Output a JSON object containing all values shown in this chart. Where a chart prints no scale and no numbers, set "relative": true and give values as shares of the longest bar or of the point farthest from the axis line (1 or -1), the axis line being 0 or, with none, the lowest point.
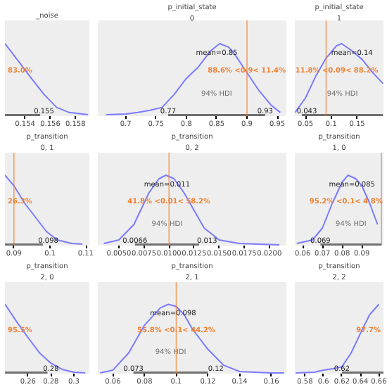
{
  "chart_data": [
    {
      "type": "line",
      "title": "_noise",
      "relative": true,
      "xlim": [
        0.1524,
        0.1591
      ],
      "xticks": [
        0.154,
        0.156,
        0.158
      ],
      "series": [
        {
          "color": "#7b7bff",
          "x": [
            0.1524,
            0.1535,
            0.1545,
            0.1555,
            0.1565,
            0.1575,
            0.159
          ],
          "values": [
            1.0,
            0.75,
            0.52,
            0.3,
            0.12,
            0.05,
            0.02
          ]
        },
        {
          "color": "#707070",
          "x": [
            0.1524,
            0.1552
          ],
          "values": [
            0,
            0
          ]
        }
      ],
      "annotations": [
        "83.0%",
        {
          "text": "0.155",
          "x": 0.1555,
          "y": 0.08
        }
      ]
    },
    {
      "type": "line",
      "title": "p_initial_state",
      "subtitle": "0",
      "relative": true,
      "xlim": [
        0.654,
        0.965
      ],
      "xticks": [
        0.7,
        0.75,
        0.8,
        0.85,
        0.9,
        0.95
      ],
      "series": [
        {
          "color": "#7b7bff",
          "x": [
            0.668,
            0.7,
            0.72,
            0.74,
            0.76,
            0.78,
            0.8,
            0.82,
            0.84,
            0.855,
            0.87,
            0.88,
            0.9,
            0.92,
            0.94,
            0.955
          ],
          "values": [
            0.02,
            0.03,
            0.05,
            0.08,
            0.12,
            0.3,
            0.52,
            0.68,
            0.9,
            1.0,
            0.95,
            0.85,
            0.6,
            0.35,
            0.15,
            0.05
          ]
        },
        {
          "name": "94% HDI",
          "color": "#707070",
          "x": [
            0.77,
            0.93
          ],
          "values": [
            0,
            0
          ]
        }
      ],
      "ref_lines": [
        {
          "axis": "x",
          "value": 0.9,
          "label": "88.6% <0.9< 11.4%",
          "color": "#f08030"
        }
      ],
      "annotations": [
        {
          "text": "mean=0.85",
          "x": 0.85,
          "y": 0.86
        },
        {
          "text": "0.77",
          "x": 0.77,
          "y": 0.08
        },
        {
          "text": "0.93",
          "x": 0.93,
          "y": 0.08
        }
      ]
    },
    {
      "type": "line",
      "title": "p_initial_state",
      "subtitle": "1",
      "relative": true,
      "xlim": [
        0.0295,
        0.201
      ],
      "xticks": [
        0.05,
        0.1,
        0.15
      ],
      "series": [
        {
          "color": "#7b7bff",
          "x": [
            0.03,
            0.05,
            0.07,
            0.09,
            0.11,
            0.12,
            0.14,
            0.16,
            0.18,
            0.2
          ],
          "values": [
            0.05,
            0.25,
            0.55,
            0.8,
            0.97,
            1.0,
            0.9,
            0.78,
            0.6,
            0.45
          ]
        },
        {
          "name": "94% HDI",
          "color": "#707070",
          "x": [
            0.043,
            0.2
          ],
          "values": [
            0,
            0
          ]
        }
      ],
      "ref_lines": [
        {
          "axis": "x",
          "value": 0.09,
          "label": "11.8% <0.09< 88.2%",
          "color": "#f08030"
        }
      ],
      "annotations": [
        {
          "text": "mean=0.14",
          "x": 0.14,
          "y": 0.86
        },
        {
          "text": "0.043",
          "x": 0.043,
          "y": 0.08
        }
      ]
    },
    {
      "type": "line",
      "title": "p_transition",
      "subtitle": "0, 1",
      "relative": true,
      "xlim": [
        0.0875,
        0.1109
      ],
      "xticks": [
        0.09,
        0.1,
        0.11
      ],
      "series": [
        {
          "color": "#7b7bff",
          "x": [
            0.0875,
            0.09,
            0.093,
            0.096,
            0.099,
            0.102,
            0.106,
            0.109
          ],
          "values": [
            1.0,
            0.85,
            0.6,
            0.4,
            0.2,
            0.08,
            0.03,
            0.02
          ]
        },
        {
          "color": "#707070",
          "x": [
            0.0875,
            0.098
          ],
          "values": [
            0,
            0
          ]
        }
      ],
      "ref_lines": [
        {
          "axis": "x",
          "value": 0.09,
          "color": "#f08030"
        }
      ],
      "annotations": [
        "26.3%",
        {
          "text": "0.098",
          "x": 0.0995,
          "y": 0.08
        }
      ]
    },
    {
      "type": "line",
      "title": "p_transition",
      "subtitle": "0, 2",
      "relative": true,
      "xlim": [
        0.0029,
        0.0217
      ],
      "xticks": [
        {
          "value": 0.005,
          "label": "0.0050"
        },
        {
          "value": 0.0075,
          "label": "0.0075"
        },
        {
          "value": 0.01,
          "label": "0.0100"
        },
        {
          "value": 0.0125,
          "label": "0.0125"
        },
        {
          "value": 0.015,
          "label": "0.0150"
        },
        {
          "value": 0.0175,
          "label": "0.0175"
        },
        {
          "value": 0.02,
          "label": "0.0200"
        }
      ],
      "series": [
        {
          "color": "#7b7bff",
          "x": [
            0.0035,
            0.005,
            0.0065,
            0.008,
            0.009,
            0.0097,
            0.0105,
            0.0115,
            0.0125,
            0.0135,
            0.015,
            0.017,
            0.021
          ],
          "values": [
            0.03,
            0.08,
            0.3,
            0.75,
            0.95,
            1.0,
            0.95,
            0.75,
            0.5,
            0.25,
            0.08,
            0.03,
            0.01
          ]
        },
        {
          "name": "94% HDI",
          "color": "#707070",
          "x": [
            0.0066,
            0.013
          ],
          "values": [
            0,
            0
          ]
        }
      ],
      "ref_lines": [
        {
          "axis": "x",
          "value": 0.01,
          "label": "41.8% <0.01< 58.2%",
          "color": "#f08030"
        }
      ],
      "annotations": [
        {
          "text": "mean=0.011",
          "x": 0.0098,
          "y": 0.86
        },
        {
          "text": "0.0066",
          "x": 0.0066,
          "y": 0.08
        },
        {
          "text": "0.013",
          "x": 0.0138,
          "y": 0.08
        }
      ]
    },
    {
      "type": "line",
      "title": "p_transition",
      "subtitle": "1, 0",
      "relative": true,
      "xlim": [
        0.056,
        0.101
      ],
      "xticks": [
        0.06,
        0.07,
        0.08,
        0.09
      ],
      "series": [
        {
          "color": "#7b7bff",
          "x": [
            0.057,
            0.065,
            0.07,
            0.075,
            0.08,
            0.083,
            0.087,
            0.09,
            0.094,
            0.098
          ],
          "values": [
            0.03,
            0.08,
            0.25,
            0.6,
            0.9,
            1.0,
            0.95,
            0.85,
            0.6,
            0.3
          ]
        },
        {
          "name": "94% HDI",
          "color": "#707070",
          "x": [
            0.069,
            0.1
          ],
          "values": [
            0,
            0
          ]
        }
      ],
      "ref_lines": [
        {
          "axis": "x",
          "value": 0.1,
          "label": "95.2% <0.1< 4.8%",
          "color": "#f08030"
        }
      ],
      "annotations": [
        {
          "text": "mean=0.085",
          "x": 0.085,
          "y": 0.86
        },
        {
          "text": "0.069",
          "x": 0.069,
          "y": 0.08
        }
      ]
    },
    {
      "type": "line",
      "title": "p_transition",
      "subtitle": "2, 0",
      "relative": true,
      "xlim": [
        0.2398,
        0.3136
      ],
      "xticks": [
        0.26,
        0.28,
        0.3
      ],
      "series": [
        {
          "color": "#7b7bff",
          "x": [
            0.24,
            0.25,
            0.26,
            0.27,
            0.28,
            0.29,
            0.3,
            0.31
          ],
          "values": [
            1.0,
            0.75,
            0.52,
            0.3,
            0.15,
            0.06,
            0.02,
            0.01
          ]
        },
        {
          "color": "#707070",
          "x": [
            0.2398,
            0.277
          ],
          "values": [
            0,
            0
          ]
        }
      ],
      "annotations": [
        "95.5%",
        {
          "text": "0.28",
          "x": 0.28,
          "y": 0.08
        }
      ]
    },
    {
      "type": "line",
      "title": "p_transition",
      "subtitle": "2, 1",
      "relative": true,
      "xlim": [
        0.0505,
        0.1695
      ],
      "xticks": [
        0.06,
        0.08,
        0.1,
        0.12,
        0.14,
        0.16
      ],
      "series": [
        {
          "color": "#7b7bff",
          "x": [
            0.052,
            0.06,
            0.07,
            0.08,
            0.09,
            0.095,
            0.1,
            0.105,
            0.11,
            0.12,
            0.13,
            0.14,
            0.16,
            0.168
          ],
          "values": [
            0.01,
            0.05,
            0.3,
            0.7,
            0.95,
            1.0,
            0.97,
            0.85,
            0.65,
            0.35,
            0.12,
            0.03,
            0.01,
            0.01
          ]
        },
        {
          "name": "94% HDI",
          "color": "#707070",
          "x": [
            0.073,
            0.12
          ],
          "values": [
            0,
            0
          ]
        }
      ],
      "ref_lines": [
        {
          "axis": "x",
          "value": 0.1,
          "label": "55.8% <0.1< 44.2%",
          "color": "#f08030"
        }
      ],
      "annotations": [
        {
          "text": "mean=0.098",
          "x": 0.098,
          "y": 0.86
        },
        {
          "text": "0.073",
          "x": 0.073,
          "y": 0.08
        },
        {
          "text": "0.12",
          "x": 0.125,
          "y": 0.08
        }
      ]
    },
    {
      "type": "line",
      "title": "p_transition",
      "subtitle": "2, 2",
      "relative": true,
      "xlim": [
        0.569,
        0.665
      ],
      "xticks": [
        0.58,
        0.6,
        0.62,
        0.64,
        0.66
      ],
      "series": [
        {
          "color": "#7b7bff",
          "x": [
            0.57,
            0.59,
            0.6,
            0.61,
            0.62,
            0.63,
            0.64,
            0.65,
            0.66
          ],
          "values": [
            0.01,
            0.02,
            0.05,
            0.07,
            0.1,
            0.3,
            0.58,
            0.85,
            1.0
          ]
        },
        {
          "color": "#707070",
          "x": [
            0.62,
            0.665
          ],
          "values": [
            0,
            0
          ]
        }
      ],
      "annotations": [
        "97.7%",
        {
          "text": "0.62",
          "x": 0.62,
          "y": 0.08
        }
      ]
    }
  ]
}
